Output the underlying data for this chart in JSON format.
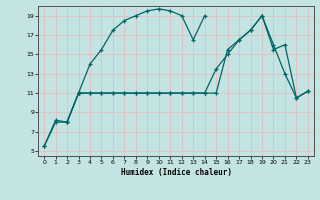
{
  "xlabel": "Humidex (Indice chaleur)",
  "bg_color": "#c4e4e4",
  "grid_color": "#e8b8b8",
  "line_color": "#006666",
  "xlim": [
    -0.5,
    23.5
  ],
  "ylim": [
    4.5,
    20.0
  ],
  "xticks": [
    0,
    1,
    2,
    3,
    4,
    5,
    6,
    7,
    8,
    9,
    10,
    11,
    12,
    13,
    14,
    15,
    16,
    17,
    18,
    19,
    20,
    21,
    22,
    23
  ],
  "yticks": [
    5,
    7,
    9,
    11,
    13,
    15,
    17,
    19
  ],
  "line1_x": [
    0,
    1,
    2,
    3,
    4,
    5,
    6,
    7,
    8,
    9,
    10,
    11,
    12,
    13,
    14
  ],
  "line1_y": [
    5.5,
    8.2,
    8.0,
    11.0,
    14.0,
    15.5,
    17.5,
    18.5,
    19.0,
    19.5,
    19.7,
    19.5,
    19.0,
    16.5,
    19.0
  ],
  "line2_x": [
    0,
    1,
    2,
    3,
    4,
    5,
    6,
    7,
    8,
    9,
    10,
    11,
    12,
    13,
    14,
    15,
    16,
    17,
    18,
    19,
    20,
    21,
    22,
    23
  ],
  "line2_y": [
    5.5,
    8.0,
    8.0,
    11.0,
    11.0,
    11.0,
    11.0,
    11.0,
    11.0,
    11.0,
    11.0,
    11.0,
    11.0,
    11.0,
    11.0,
    11.0,
    15.5,
    16.5,
    17.5,
    19.0,
    16.0,
    13.0,
    10.5,
    11.2
  ],
  "line3_x": [
    2,
    3,
    4,
    5,
    6,
    7,
    8,
    9,
    10,
    11,
    12,
    13,
    14,
    15,
    16,
    17,
    18,
    19,
    20,
    21,
    22,
    23
  ],
  "line3_y": [
    8.0,
    11.0,
    11.0,
    11.0,
    11.0,
    11.0,
    11.0,
    11.0,
    11.0,
    11.0,
    11.0,
    11.0,
    11.0,
    13.5,
    15.0,
    16.5,
    17.5,
    19.0,
    15.5,
    16.0,
    10.5,
    11.2
  ]
}
